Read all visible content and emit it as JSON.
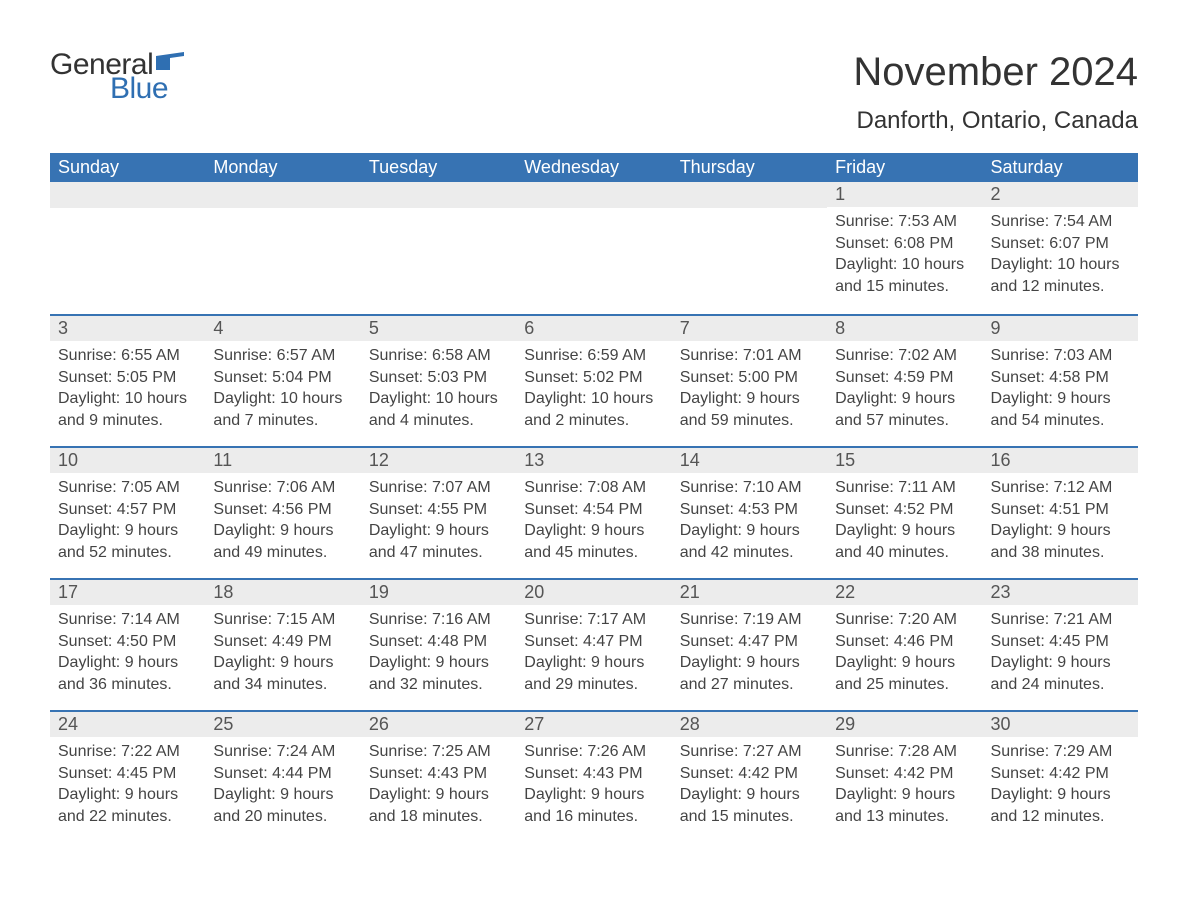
{
  "logo": {
    "general": "General",
    "blue": "Blue",
    "flag_color": "#2f6fb2"
  },
  "title": "November 2024",
  "location": "Danforth, Ontario, Canada",
  "colors": {
    "header_bg": "#3773b3",
    "header_text": "#ffffff",
    "daynum_bg": "#ececec",
    "rule": "#3773b3",
    "body_text": "#444444",
    "page_bg": "#ffffff"
  },
  "day_headers": [
    "Sunday",
    "Monday",
    "Tuesday",
    "Wednesday",
    "Thursday",
    "Friday",
    "Saturday"
  ],
  "weeks": [
    [
      null,
      null,
      null,
      null,
      null,
      {
        "n": "1",
        "sunrise": "Sunrise: 7:53 AM",
        "sunset": "Sunset: 6:08 PM",
        "daylight": "Daylight: 10 hours and 15 minutes."
      },
      {
        "n": "2",
        "sunrise": "Sunrise: 7:54 AM",
        "sunset": "Sunset: 6:07 PM",
        "daylight": "Daylight: 10 hours and 12 minutes."
      }
    ],
    [
      {
        "n": "3",
        "sunrise": "Sunrise: 6:55 AM",
        "sunset": "Sunset: 5:05 PM",
        "daylight": "Daylight: 10 hours and 9 minutes."
      },
      {
        "n": "4",
        "sunrise": "Sunrise: 6:57 AM",
        "sunset": "Sunset: 5:04 PM",
        "daylight": "Daylight: 10 hours and 7 minutes."
      },
      {
        "n": "5",
        "sunrise": "Sunrise: 6:58 AM",
        "sunset": "Sunset: 5:03 PM",
        "daylight": "Daylight: 10 hours and 4 minutes."
      },
      {
        "n": "6",
        "sunrise": "Sunrise: 6:59 AM",
        "sunset": "Sunset: 5:02 PM",
        "daylight": "Daylight: 10 hours and 2 minutes."
      },
      {
        "n": "7",
        "sunrise": "Sunrise: 7:01 AM",
        "sunset": "Sunset: 5:00 PM",
        "daylight": "Daylight: 9 hours and 59 minutes."
      },
      {
        "n": "8",
        "sunrise": "Sunrise: 7:02 AM",
        "sunset": "Sunset: 4:59 PM",
        "daylight": "Daylight: 9 hours and 57 minutes."
      },
      {
        "n": "9",
        "sunrise": "Sunrise: 7:03 AM",
        "sunset": "Sunset: 4:58 PM",
        "daylight": "Daylight: 9 hours and 54 minutes."
      }
    ],
    [
      {
        "n": "10",
        "sunrise": "Sunrise: 7:05 AM",
        "sunset": "Sunset: 4:57 PM",
        "daylight": "Daylight: 9 hours and 52 minutes."
      },
      {
        "n": "11",
        "sunrise": "Sunrise: 7:06 AM",
        "sunset": "Sunset: 4:56 PM",
        "daylight": "Daylight: 9 hours and 49 minutes."
      },
      {
        "n": "12",
        "sunrise": "Sunrise: 7:07 AM",
        "sunset": "Sunset: 4:55 PM",
        "daylight": "Daylight: 9 hours and 47 minutes."
      },
      {
        "n": "13",
        "sunrise": "Sunrise: 7:08 AM",
        "sunset": "Sunset: 4:54 PM",
        "daylight": "Daylight: 9 hours and 45 minutes."
      },
      {
        "n": "14",
        "sunrise": "Sunrise: 7:10 AM",
        "sunset": "Sunset: 4:53 PM",
        "daylight": "Daylight: 9 hours and 42 minutes."
      },
      {
        "n": "15",
        "sunrise": "Sunrise: 7:11 AM",
        "sunset": "Sunset: 4:52 PM",
        "daylight": "Daylight: 9 hours and 40 minutes."
      },
      {
        "n": "16",
        "sunrise": "Sunrise: 7:12 AM",
        "sunset": "Sunset: 4:51 PM",
        "daylight": "Daylight: 9 hours and 38 minutes."
      }
    ],
    [
      {
        "n": "17",
        "sunrise": "Sunrise: 7:14 AM",
        "sunset": "Sunset: 4:50 PM",
        "daylight": "Daylight: 9 hours and 36 minutes."
      },
      {
        "n": "18",
        "sunrise": "Sunrise: 7:15 AM",
        "sunset": "Sunset: 4:49 PM",
        "daylight": "Daylight: 9 hours and 34 minutes."
      },
      {
        "n": "19",
        "sunrise": "Sunrise: 7:16 AM",
        "sunset": "Sunset: 4:48 PM",
        "daylight": "Daylight: 9 hours and 32 minutes."
      },
      {
        "n": "20",
        "sunrise": "Sunrise: 7:17 AM",
        "sunset": "Sunset: 4:47 PM",
        "daylight": "Daylight: 9 hours and 29 minutes."
      },
      {
        "n": "21",
        "sunrise": "Sunrise: 7:19 AM",
        "sunset": "Sunset: 4:47 PM",
        "daylight": "Daylight: 9 hours and 27 minutes."
      },
      {
        "n": "22",
        "sunrise": "Sunrise: 7:20 AM",
        "sunset": "Sunset: 4:46 PM",
        "daylight": "Daylight: 9 hours and 25 minutes."
      },
      {
        "n": "23",
        "sunrise": "Sunrise: 7:21 AM",
        "sunset": "Sunset: 4:45 PM",
        "daylight": "Daylight: 9 hours and 24 minutes."
      }
    ],
    [
      {
        "n": "24",
        "sunrise": "Sunrise: 7:22 AM",
        "sunset": "Sunset: 4:45 PM",
        "daylight": "Daylight: 9 hours and 22 minutes."
      },
      {
        "n": "25",
        "sunrise": "Sunrise: 7:24 AM",
        "sunset": "Sunset: 4:44 PM",
        "daylight": "Daylight: 9 hours and 20 minutes."
      },
      {
        "n": "26",
        "sunrise": "Sunrise: 7:25 AM",
        "sunset": "Sunset: 4:43 PM",
        "daylight": "Daylight: 9 hours and 18 minutes."
      },
      {
        "n": "27",
        "sunrise": "Sunrise: 7:26 AM",
        "sunset": "Sunset: 4:43 PM",
        "daylight": "Daylight: 9 hours and 16 minutes."
      },
      {
        "n": "28",
        "sunrise": "Sunrise: 7:27 AM",
        "sunset": "Sunset: 4:42 PM",
        "daylight": "Daylight: 9 hours and 15 minutes."
      },
      {
        "n": "29",
        "sunrise": "Sunrise: 7:28 AM",
        "sunset": "Sunset: 4:42 PM",
        "daylight": "Daylight: 9 hours and 13 minutes."
      },
      {
        "n": "30",
        "sunrise": "Sunrise: 7:29 AM",
        "sunset": "Sunset: 4:42 PM",
        "daylight": "Daylight: 9 hours and 12 minutes."
      }
    ]
  ]
}
